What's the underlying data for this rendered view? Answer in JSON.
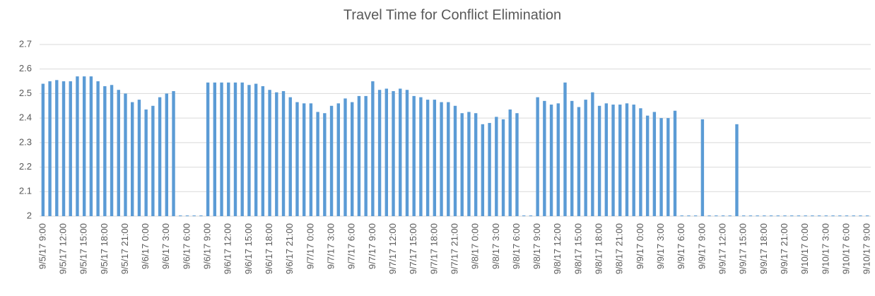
{
  "chart_data": {
    "type": "bar",
    "title": "Travel Time for Conflict Elimination",
    "categories": [
      "9/5/17 9:00",
      null,
      null,
      "9/5/17 12:00",
      null,
      null,
      "9/5/17 15:00",
      null,
      null,
      "9/5/17 18:00",
      null,
      null,
      "9/5/17 21:00",
      null,
      null,
      "9/6/17 0:00",
      null,
      null,
      "9/6/17 3:00",
      null,
      null,
      "9/6/17 6:00",
      null,
      null,
      "9/6/17 9:00",
      null,
      null,
      "9/6/17 12:00",
      null,
      null,
      "9/6/17 15:00",
      null,
      null,
      "9/6/17 18:00",
      null,
      null,
      "9/6/17 21:00",
      null,
      null,
      "9/7/17 0:00",
      null,
      null,
      "9/7/17 3:00",
      null,
      null,
      "9/7/17 6:00",
      null,
      null,
      "9/7/17 9:00",
      null,
      null,
      "9/7/17 12:00",
      null,
      null,
      "9/7/17 15:00",
      null,
      null,
      "9/7/17 18:00",
      null,
      null,
      "9/7/17 21:00",
      null,
      null,
      "9/8/17 0:00",
      null,
      null,
      "9/8/17 3:00",
      null,
      null,
      "9/8/17 6:00",
      null,
      null,
      "9/8/17 9:00",
      null,
      null,
      "9/8/17 12:00",
      null,
      null,
      "9/8/17 15:00",
      null,
      null,
      "9/8/17 18:00",
      null,
      null,
      "9/8/17 21:00",
      null,
      null,
      "9/9/17 0:00",
      null,
      null,
      "9/9/17 3:00",
      null,
      null,
      "9/9/17 6:00",
      null,
      null,
      "9/9/17 9:00",
      null,
      null,
      "9/9/17 12:00",
      null,
      null,
      "9/9/17 15:00",
      null,
      null,
      "9/9/17 18:00",
      null,
      null,
      "9/9/17 21:00",
      null,
      null,
      "9/10/17 0:00",
      null,
      null,
      "9/10/17 3:00",
      null,
      null,
      "9/10/17 6:00",
      null,
      null,
      "9/10/17 9:00"
    ],
    "values": [
      2.54,
      2.55,
      2.555,
      2.55,
      2.55,
      2.57,
      2.57,
      2.57,
      2.55,
      2.53,
      2.535,
      2.515,
      2.5,
      2.465,
      2.475,
      2.435,
      2.45,
      2.485,
      2.5,
      2.51,
      2,
      2,
      2,
      2,
      2.545,
      2.545,
      2.545,
      2.545,
      2.545,
      2.545,
      2.535,
      2.54,
      2.53,
      2.515,
      2.505,
      2.51,
      2.485,
      2.465,
      2.46,
      2.46,
      2.425,
      2.42,
      2.45,
      2.46,
      2.48,
      2.465,
      2.49,
      2.49,
      2.55,
      2.515,
      2.52,
      2.51,
      2.52,
      2.515,
      2.49,
      2.485,
      2.475,
      2.475,
      2.465,
      2.465,
      2.45,
      2.42,
      2.425,
      2.42,
      2.375,
      2.38,
      2.405,
      2.395,
      2.435,
      2.42,
      2,
      2,
      2.485,
      2.47,
      2.455,
      2.46,
      2.545,
      2.47,
      2.445,
      2.475,
      2.505,
      2.45,
      2.46,
      2.455,
      2.455,
      2.46,
      2.455,
      2.44,
      2.41,
      2.425,
      2.4,
      2.4,
      2.43,
      2,
      2,
      2,
      2.395,
      2,
      2,
      2,
      2,
      2.375,
      2,
      2,
      2,
      2,
      2,
      2,
      2,
      2,
      2,
      2,
      2,
      2,
      2,
      2,
      2,
      2,
      2,
      2,
      2
    ],
    "color": "#5b9bd5",
    "ylim": [
      2,
      2.7
    ],
    "yticks": [
      2,
      2.1,
      2.2,
      2.3,
      2.4,
      2.5,
      2.6,
      2.7
    ],
    "grid": true
  }
}
